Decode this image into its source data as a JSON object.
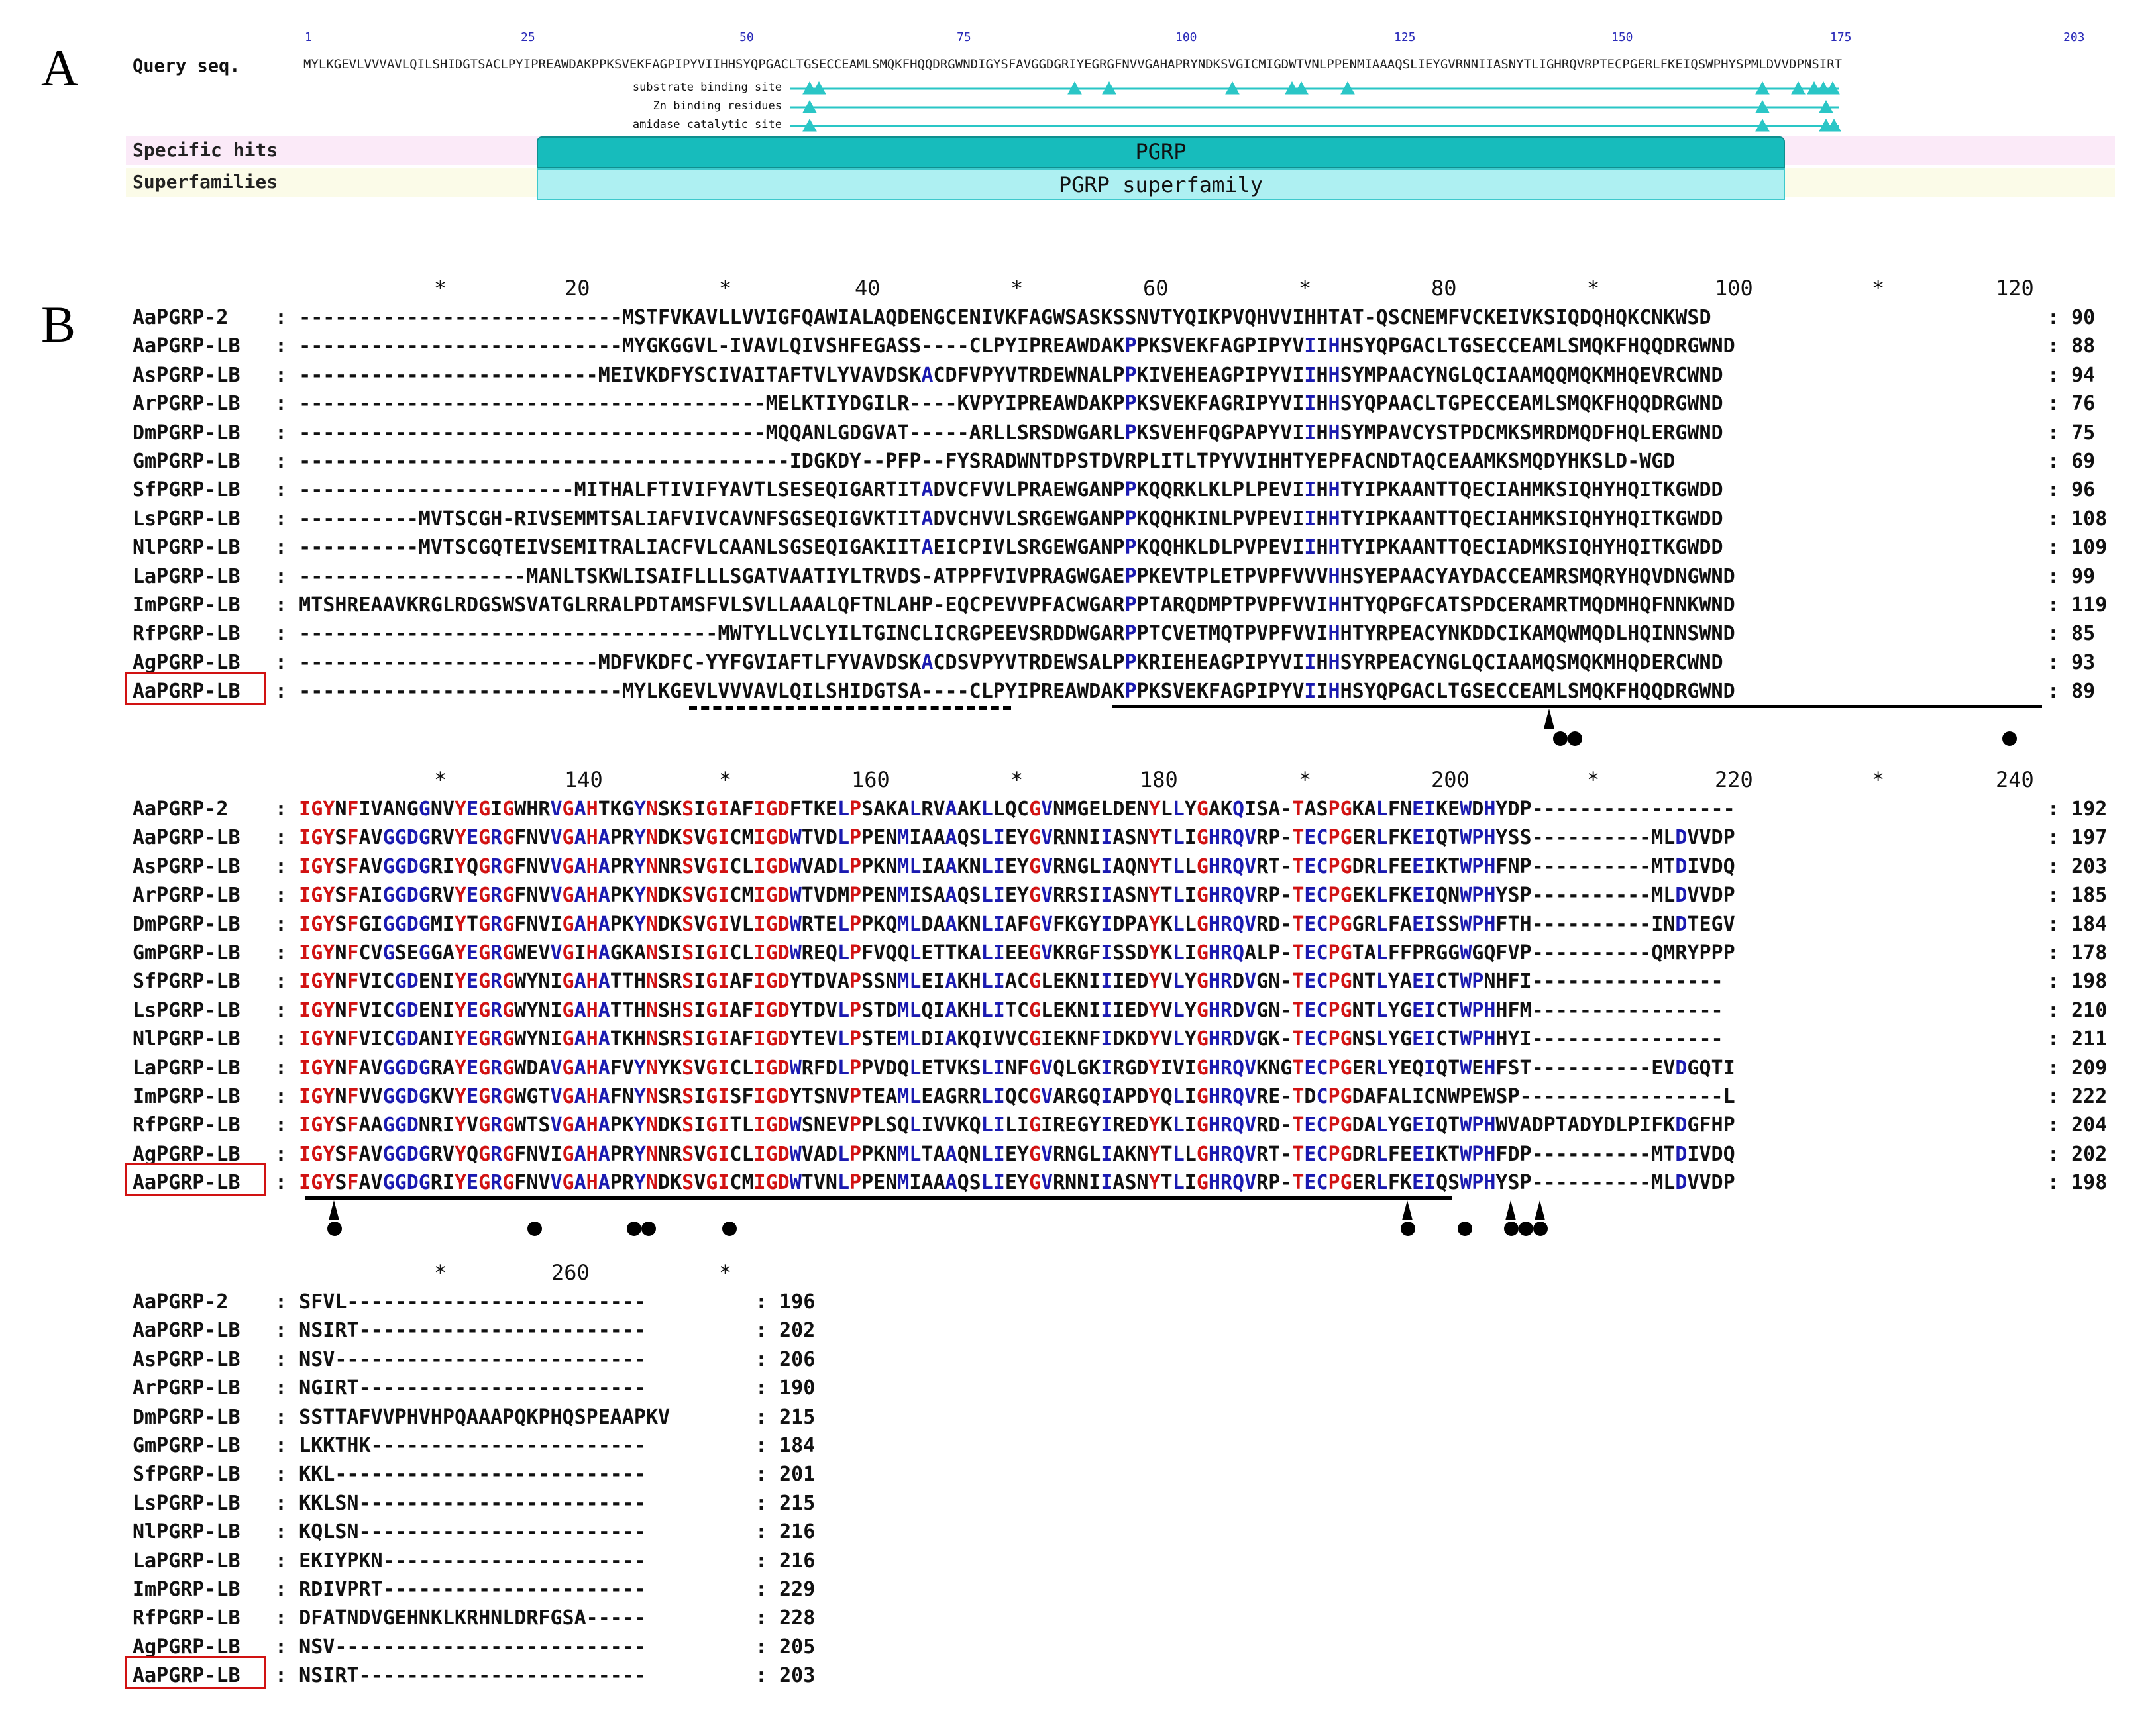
{
  "panelA": {
    "label": "A",
    "query_label": "Query seq.",
    "ticks": [
      "1",
      "25",
      "50",
      "75",
      "100",
      "125",
      "150",
      "175",
      "203"
    ],
    "query_sequence": "MYLKGEVLVVVAVLQILSHIDGTSACLPYIPREAWDAKPPKSVEKFAGPIPYVIIHHSYQPGACLTGSECCEAMLSMQKFHQQDRGWNDIGYSFAVGGDGRIYEGRGFNVVGAHAPRYNDKSVGICMIGDWTVNLPPENMIAAAQSLIEYGVRNNIIASNYTLIGHRQVRPTECPGERLFKEIQSWPHYSPMLDVVDPNSIRT",
    "sites": [
      "substrate binding site",
      "Zn binding residues",
      "amidase catalytic site"
    ],
    "specific_hits_label": "Specific hits",
    "superfamilies_label": "Superfamilies",
    "specific_hit": "PGRP",
    "superfamily": "PGRP superfamily"
  },
  "panelB": {
    "label": "B",
    "block1": {
      "ruler": [
        "*",
        "20",
        "*",
        "40",
        "*",
        "60",
        "*",
        "80",
        "*",
        "100",
        "*",
        "120"
      ],
      "rows": [
        {
          "name": "AaPGRP-2",
          "seq": "---------------------------MSTFVKAVLLVVIGFQAWIALAQDENGCENIVKFAGWSASKSSNVTYQIKPVQHVVIHHTAT-QSCNEMFVCKEIVKSIQDQHQKCNKWSD",
          "num": "90"
        },
        {
          "name": "AaPGRP-LB",
          "seq": "---------------------------MYGKGGVL-IVAVLQIVSHFEGASS----CLPYIPREAWDAKPPKSVEKFAGPIPYVIIHHSYQPGACLTGSECCEAMLSMQKFHQQDRGWND",
          "num": "88"
        },
        {
          "name": "AsPGRP-LB",
          "seq": "-------------------------MEIVKDFYSCIVAITAFTVLYVAVDSKACDFVPYVTRDEWNALPPKIVEHEAGPIPYVIIHHSYMPAACYNGLQCIAAMQQMQKMHQEVRCWND",
          "num": "94"
        },
        {
          "name": "ArPGRP-LB",
          "seq": "---------------------------------------MELKTIYDGILR----KVPYIPREAWDAKPPKSVEKFAGRIPYVIIHHSYQPAACLTGPECCEAMLSMQKFHQQDRGWND",
          "num": "76"
        },
        {
          "name": "DmPGRP-LB",
          "seq": "---------------------------------------MQQANLGDGVAT-----ARLLSRSDWGARLPKSVEHFQGPAPYVIIHHSYMPAVCYSTPDCMKSMRDMQDFHQLERGWND",
          "num": "75"
        },
        {
          "name": "GmPGRP-LB",
          "seq": "-----------------------------------------IDGKDY--PFP--FYSRADWNTDPSTDVRPLITLTPYVVIHHTYEPFACNDTAQCEAAMKSMQDYHKSLD-WGD",
          "num": "69"
        },
        {
          "name": "SfPGRP-LB",
          "seq": "-----------------------MITHALFTIVIFYAVTLSESEQIGARTITADVCFVVLPRAEWGANPPKQQRKLKLPLPEVIIHHTYIPKAANTTQECIAHMKSIQHYHQITKGWDD",
          "num": "96"
        },
        {
          "name": "LsPGRP-LB",
          "seq": "----------MVTSCGH-RIVSEMMTSALIAFVIVCAVNFSGSEQIGVKTITADVCHVVLSRGEWGANPPKQQHKINLPVPEVIIHHTYIPKAANTTQECIAHMKSIQHYHQITKGWDD",
          "num": "108"
        },
        {
          "name": "NlPGRP-LB",
          "seq": "----------MVTSCGQTEIVSEMITRALIACFVLCAANLSGSEQIGAKIITAEICPIVLSRGEWGANPPKQQHKLDLPVPEVIIHHTYIPKAANTTQECIADMKSIQHYHQITKGWDD",
          "num": "109"
        },
        {
          "name": "LaPGRP-LB",
          "seq": "-------------------MANLTSKWLISAIFLLLSGATVAATIYLTRVDS-ATPPFVIVPRAGWGAEPPKEVTPLETPVPFVVVHHSYEPAACYAYDACCEAMRSMQRYHQVDNGWND",
          "num": "99"
        },
        {
          "name": "ImPGRP-LB",
          "seq": "MTSHREAAVKRGLRDGSWSVATGLRRALPDTAMSFVLSVLLAAALQFTNLAHP-EQCPEVVPFACWGARPPTARQDMPTPVPFVVIHHTYQPGFCATSPDCERAMRTMQDMHQFNNKWND",
          "num": "119"
        },
        {
          "name": "RfPGRP-LB",
          "seq": "-----------------------------------MWTYLLVCLYILTGINCLICRGPEEVSRDDWGARPPTCVETMQTPVPFVVIHHTYRPEACYNKDDCIKAMQWMQDLHQINNSWND",
          "num": "85"
        },
        {
          "name": "AgPGRP-LB",
          "seq": "-------------------------MDFVKDFC-YYFGVIAFTLFYVAVDSKACDSVPYVTRDEWSALPPKRIEHEAGPIPYVIIHHSYRPEACYNGLQCIAAMQSMQKMHQDERCWND",
          "num": "93"
        },
        {
          "name": "AaPGRP-LB",
          "seq": "---------------------------MYLKGEVLVVVAVLQILSHIDGTSA----CLPYIPREAWDAKPPKSVEKFAGPIPYVIIHHSYQPGACLTGSECCEAMLSMQKFHQQDRGWND",
          "num": "89"
        }
      ]
    },
    "block2": {
      "ruler": [
        "*",
        "140",
        "*",
        "160",
        "*",
        "180",
        "*",
        "200",
        "*",
        "220",
        "*",
        "240"
      ],
      "rows": [
        {
          "name": "AaPGRP-2",
          "seq": "IGYNFIVANGGNVYEGIGWHRVGAHTKGYNSKSIGIAFIGDFTKELPSAKALRVAAKLLQCGVNMGELDENYLLYGAKQISA-TASPGKALFNEIKEWDHYDP-----------------",
          "num": "192"
        },
        {
          "name": "AaPGRP-LB",
          "seq": "IGYSFAVGGDGRVYEGRGFNVVGAHAPRYNDKSVGICMIGDWTVDLPPENMIAAAQSLIEYGVRNNIIASNYTLIGHRQVRP-TECPGERLFKEIQTWPHYSS----------MLDVVDP",
          "num": "197"
        },
        {
          "name": "AsPGRP-LB",
          "seq": "IGYSFAVGGDGRIYQGRGFNVVGAHAPRYNNRSVGICLIGDWVADLPPKNMLIAAKNLIEYGVRNGLIAQNYTLLGHRQVRT-TECPGDRLFEEIKTWPHFNP----------MTDIVDQ",
          "num": "203"
        },
        {
          "name": "ArPGRP-LB",
          "seq": "IGYSFAIGGDGRVYEGRGFNVVGAHAPKYNDKSVGICMIGDWTVDMPPENMISAAQSLIEYGVRRSIIASNYTLIGHRQVRP-TECPGEKLFKEIQNWPHYSP----------MLDVVDP",
          "num": "185"
        },
        {
          "name": "DmPGRP-LB",
          "seq": "IGYSFGIGGDGMIYTGRGFNVIGAHAPKYNDKSVGIVLIGDWRTELPPKQMLDAAKNLIAFGVFKGYIDPAYKLLGHRQVRD-TECPGGRLFAEISSWPHFTH----------INDTEGV",
          "num": "184"
        },
        {
          "name": "GmPGRP-LB",
          "seq": "IGYNFCVGSEGGAYEGRGWEVVGIHAGKANSISIGICLIGDWREQLPFVQQLETTKALIEEGVKRGFISSDYKLIGHRQALP-TECPGTALFFPRGGWGQFVP----------QMRYPPP",
          "num": "178"
        },
        {
          "name": "SfPGRP-LB",
          "seq": "IGYNFVICGDENIYEGRGWYNIGAHATTHNSRSIGIAFIGDYTDVAPSSNMLEIAKHLIACGLEKNIIIEDYVLYGHRDVGN-TECPGNTLYAEICTWPNHFI----------------",
          "num": "198"
        },
        {
          "name": "LsPGRP-LB",
          "seq": "IGYNFVICGDENIYEGRGWYNIGAHATTHNSHSIGIAFIGDYTDVLPSTDMLQIAKHLITCGLEKNIIIEDYVLYGHRDVGN-TECPGNTLYGEICTWPHHFM----------------",
          "num": "210"
        },
        {
          "name": "NlPGRP-LB",
          "seq": "IGYNFVICGDANIYEGRGWYNIGAHATKHNSRSIGIAFIGDYTEVLPSTEMLDIAKQIVVCGIEKNFIDKDYVLYGHRDVGK-TECPGNSLYGEICTWPHHYI----------------",
          "num": "211"
        },
        {
          "name": "LaPGRP-LB",
          "seq": "IGYNFAVGGDGRAYEGRGWDAVGAHAFVYNYKSVGICLIGDWRFDLPPVDQLETVKSLINFGVQLGKIRGDYIVIGHRQVKNGTECPGERLYEQIQTWEHFST----------EVDGQTI",
          "num": "209"
        },
        {
          "name": "ImPGRP-LB",
          "seq": "IGYNFVVGGDGKVYEGRGWGTVGAHAFNYNSRSIGISFIGDYTSNVPTEAMLEAGRRLIQCGVARGQIAPDYQLIGHRQVRE-TDCPGDAFALICNWPEWSP-----------------L",
          "num": "222"
        },
        {
          "name": "RfPGRP-LB",
          "seq": "IGYSFAAGGDNRIYVGRGWTSVGAHAPKYNDKSIGITLIGDWSNEVPPLSQLIVVKQLILIGIREGYIREDYKLIGHRQVRD-TECPGDALYGEIQTWPHWVADPTADYDLPIFKDGFHP",
          "num": "204"
        },
        {
          "name": "AgPGRP-LB",
          "seq": "IGYSFAVGGDGRVYQGRGFNVIGAHAPRYNNRSVGICLIGDWVADLPPKNMLTAAQNLIEYGVRNGLIAKNYTLLGHRQVRT-TECPGDRLFEEIKTWPHFDP----------MTDIVDQ",
          "num": "202"
        },
        {
          "name": "AaPGRP-LB",
          "seq": "IGYSFAVGGDGRIYEGRGFNVVGAHAPRYNDKSVGICMIGDWTVNLPPENMIAAAQSLIEYGVRNNIIASNYTLIGHRQVRP-TECPGERLFKEIQSWPHYSP----------MLDVVDP",
          "num": "198"
        }
      ]
    },
    "block3": {
      "ruler": [
        "*",
        "260",
        "*"
      ],
      "rows": [
        {
          "name": "AaPGRP-2",
          "seq": "SFVL-------------------------",
          "num": "196"
        },
        {
          "name": "AaPGRP-LB",
          "seq": "NSIRT------------------------",
          "num": "202"
        },
        {
          "name": "AsPGRP-LB",
          "seq": "NSV--------------------------",
          "num": "206"
        },
        {
          "name": "ArPGRP-LB",
          "seq": "NGIRT------------------------",
          "num": "190"
        },
        {
          "name": "DmPGRP-LB",
          "seq": "SSTTAFVVPHVHPQAAAPQKPHQSPEAAPKV",
          "num": "215"
        },
        {
          "name": "GmPGRP-LB",
          "seq": "LKKTHK-----------------------",
          "num": "184"
        },
        {
          "name": "SfPGRP-LB",
          "seq": "KKL--------------------------",
          "num": "201"
        },
        {
          "name": "LsPGRP-LB",
          "seq": "KKLSN------------------------",
          "num": "215"
        },
        {
          "name": "NlPGRP-LB",
          "seq": "KQLSN------------------------",
          "num": "216"
        },
        {
          "name": "LaPGRP-LB",
          "seq": "EKIYPKN----------------------",
          "num": "216"
        },
        {
          "name": "ImPGRP-LB",
          "seq": "RDIVPRT----------------------",
          "num": "229"
        },
        {
          "name": "RfPGRP-LB",
          "seq": "DFATNDVGEHNKLKRHNLDRFGSA-----",
          "num": "228"
        },
        {
          "name": "AgPGRP-LB",
          "seq": "NSV--------------------------",
          "num": "205"
        },
        {
          "name": "AaPGRP-LB",
          "seq": "NSIRT------------------------",
          "num": "203"
        }
      ]
    }
  }
}
